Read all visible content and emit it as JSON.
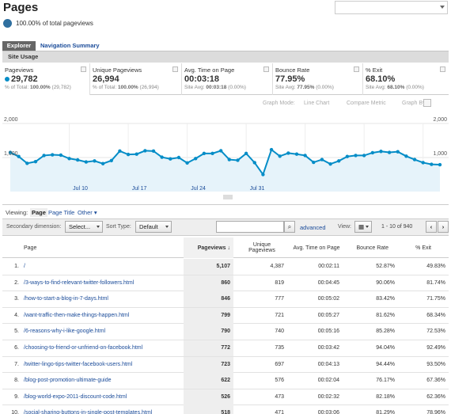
{
  "header": {
    "title": "Pages",
    "pct_total": "100.00% of total pageviews"
  },
  "tabs": {
    "explorer": "Explorer",
    "navigation_summary": "Navigation Summary"
  },
  "section": {
    "site_usage": "Site Usage"
  },
  "metrics": [
    {
      "label": "Pageviews",
      "value": "29,782",
      "sub_prefix": "% of Total: ",
      "sub_bold": "100.00%",
      "sub_rest": " (29,782)"
    },
    {
      "label": "Unique Pageviews",
      "value": "26,994",
      "sub_prefix": "% of Total: ",
      "sub_bold": "100.00%",
      "sub_rest": " (26,994)"
    },
    {
      "label": "Avg. Time on Page",
      "value": "00:03:18",
      "sub_prefix": "Site Avg: ",
      "sub_bold": "00:03:18",
      "sub_rest": " (0.00%)"
    },
    {
      "label": "Bounce Rate",
      "value": "77.95%",
      "sub_prefix": "Site Avg: ",
      "sub_bold": "77.95%",
      "sub_rest": " (0.00%)"
    },
    {
      "label": "% Exit",
      "value": "68.10%",
      "sub_prefix": "Site Avg: ",
      "sub_bold": "68.10%",
      "sub_rest": " (0.00%)"
    }
  ],
  "graph_options": {
    "graph_mode": "Graph Mode:",
    "line_chart": "Line Chart",
    "compare_metric": "Compare Metric",
    "graph_by": "Graph By:"
  },
  "chart_data": {
    "type": "area",
    "series": [
      {
        "values": [
          1150,
          1030,
          830,
          880,
          1060,
          1080,
          1070,
          970,
          930,
          870,
          900,
          820,
          910,
          1190,
          1090,
          1100,
          1200,
          1190,
          1010,
          960,
          1000,
          840,
          970,
          1120,
          1120,
          1200,
          940,
          920,
          1120,
          850,
          500,
          1230,
          1040,
          1130,
          1100,
          1060,
          860,
          940,
          810,
          900,
          1030,
          1060,
          1060,
          1140,
          1180,
          1150,
          1170,
          1040,
          940,
          850,
          800,
          790
        ]
      }
    ],
    "x_tick_labels": [
      "Jul 10",
      "Jul 17",
      "Jul 24",
      "Jul 31"
    ],
    "y_tick_labels_left": [
      "2,000",
      "1,000"
    ],
    "y_tick_labels_right": [
      "2,000",
      "1,000"
    ],
    "ylim": [
      0,
      2000
    ],
    "colors": {
      "line": "#058dc7",
      "fill": "#e6f3fa"
    }
  },
  "viewing": {
    "label": "Viewing:",
    "page": "Page",
    "page_title": "Page Title",
    "other": "Other"
  },
  "toolbar": {
    "secondary_dimension": "Secondary dimension:",
    "select": "Select...",
    "sort_type": "Sort Type:",
    "sort_default": "Default",
    "advanced": "advanced",
    "view": "View:",
    "range": "1 - 10 of 940",
    "prev": "‹",
    "next": "›"
  },
  "table": {
    "headers": {
      "page": "Page",
      "pageviews": "Pageviews",
      "unique": "Unique Pageviews",
      "avg_time": "Avg. Time on Page",
      "bounce": "Bounce Rate",
      "exit": "% Exit"
    },
    "rows": [
      {
        "idx": "1.",
        "page": "/",
        "pv": "5,107",
        "upv": "4,387",
        "time": "00:02:11",
        "bounce": "52.87%",
        "exit": "49.83%"
      },
      {
        "idx": "2.",
        "page": "/3-ways-to-find-relevant-twitter-followers.html",
        "pv": "860",
        "upv": "819",
        "time": "00:04:45",
        "bounce": "90.06%",
        "exit": "81.74%"
      },
      {
        "idx": "3.",
        "page": "/how-to-start-a-blog-in-7-days.html",
        "pv": "846",
        "upv": "777",
        "time": "00:05:02",
        "bounce": "83.42%",
        "exit": "71.75%"
      },
      {
        "idx": "4.",
        "page": "/want-traffic-then-make-things-happen.html",
        "pv": "799",
        "upv": "721",
        "time": "00:05:27",
        "bounce": "81.62%",
        "exit": "68.34%"
      },
      {
        "idx": "5.",
        "page": "/6-reasons-why-i-like-google.html",
        "pv": "790",
        "upv": "740",
        "time": "00:05:16",
        "bounce": "85.28%",
        "exit": "72.53%"
      },
      {
        "idx": "6.",
        "page": "/choosing-to-friend-or-unfriend-on-facebook.html",
        "pv": "772",
        "upv": "735",
        "time": "00:03:42",
        "bounce": "94.04%",
        "exit": "92.49%"
      },
      {
        "idx": "7.",
        "page": "/twitter-lingo-tips-twitter-facebook-users.html",
        "pv": "723",
        "upv": "697",
        "time": "00:04:13",
        "bounce": "94.44%",
        "exit": "93.50%"
      },
      {
        "idx": "8.",
        "page": "/blog-post-promotion-ultimate-guide",
        "pv": "622",
        "upv": "576",
        "time": "00:02:04",
        "bounce": "76.17%",
        "exit": "67.36%"
      },
      {
        "idx": "9.",
        "page": "/blog-world-expo-2011-discount-code.html",
        "pv": "526",
        "upv": "473",
        "time": "00:02:32",
        "bounce": "82.18%",
        "exit": "62.36%"
      },
      {
        "idx": "10.",
        "page": "/social-sharing-buttons-in-single-post-templates.html",
        "pv": "518",
        "upv": "471",
        "time": "00:03:06",
        "bounce": "81.29%",
        "exit": "78.96%"
      }
    ]
  }
}
